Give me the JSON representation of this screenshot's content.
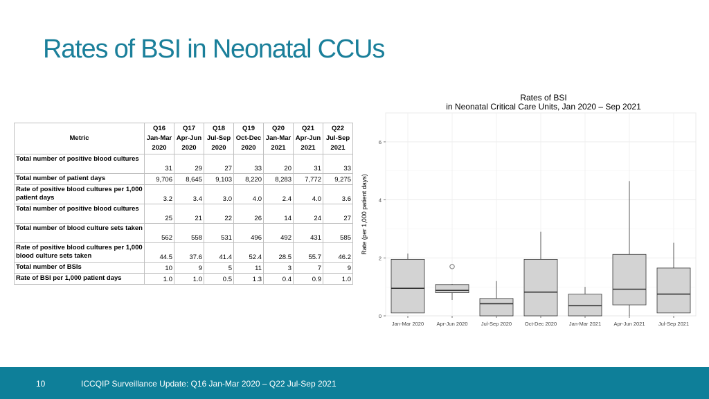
{
  "slide_title": "Rates of BSI in Neonatal CCUs",
  "table": {
    "metric_header": "Metric",
    "quarters": [
      {
        "q": "Q16",
        "period": "Jan-Mar",
        "year": "2020"
      },
      {
        "q": "Q17",
        "period": "Apr-Jun",
        "year": "2020"
      },
      {
        "q": "Q18",
        "period": "Jul-Sep",
        "year": "2020"
      },
      {
        "q": "Q19",
        "period": "Oct-Dec",
        "year": "2020"
      },
      {
        "q": "Q20",
        "period": "Jan-Mar",
        "year": "2021"
      },
      {
        "q": "Q21",
        "period": "Apr-Jun",
        "year": "2021"
      },
      {
        "q": "Q22",
        "period": "Jul-Sep",
        "year": "2021"
      }
    ],
    "rows": [
      {
        "metric": "Total number of positive blood cultures",
        "values": [
          "31",
          "29",
          "27",
          "33",
          "20",
          "31",
          "33"
        ]
      },
      {
        "metric": "Total number of patient days",
        "values": [
          "9,706",
          "8,645",
          "9,103",
          "8,220",
          "8,283",
          "7,772",
          "9,275"
        ]
      },
      {
        "metric": "Rate of positive blood cultures per 1,000 patient days",
        "values": [
          "3.2",
          "3.4",
          "3.0",
          "4.0",
          "2.4",
          "4.0",
          "3.6"
        ]
      },
      {
        "metric": "Total number of positive blood cultures",
        "values": [
          "25",
          "21",
          "22",
          "26",
          "14",
          "24",
          "27"
        ]
      },
      {
        "metric": "Total number of blood culture sets taken",
        "values": [
          "562",
          "558",
          "531",
          "496",
          "492",
          "431",
          "585"
        ]
      },
      {
        "metric": "Rate of positive blood cultures per 1,000 blood culture sets taken",
        "values": [
          "44.5",
          "37.6",
          "41.4",
          "52.4",
          "28.5",
          "55.7",
          "46.2"
        ]
      },
      {
        "metric": "Total number of BSIs",
        "values": [
          "10",
          "9",
          "5",
          "11",
          "3",
          "7",
          "9"
        ]
      },
      {
        "metric": "Rate of BSI per 1,000 patient days",
        "values": [
          "1.0",
          "1.0",
          "0.5",
          "1.3",
          "0.4",
          "0.9",
          "1.0"
        ]
      }
    ]
  },
  "chart_data": {
    "type": "boxplot",
    "title": "Rates of BSI",
    "subtitle": "in Neonatal Critical Care Units, Jan 2020 – Sep 2021",
    "xlabel": "",
    "ylabel": "Rate (per 1,000 patient days)",
    "ylim": [
      0,
      7
    ],
    "yticks": [
      0,
      2,
      4,
      6
    ],
    "grid": true,
    "categories": [
      "Jan-Mar 2020",
      "Apr-Jun 2020",
      "Jul-Sep 2020",
      "Oct-Dec 2020",
      "Jan-Mar 2021",
      "Apr-Jun 2021",
      "Jul-Sep 2021"
    ],
    "boxes": [
      {
        "min": 0.1,
        "q1": 0.1,
        "median": 0.95,
        "q3": 1.95,
        "max": 2.15,
        "outliers": []
      },
      {
        "min": 0.55,
        "q1": 0.8,
        "median": 0.88,
        "q3": 1.08,
        "max": 1.1,
        "outliers": [
          1.7
        ]
      },
      {
        "min": 0.0,
        "q1": 0.0,
        "median": 0.42,
        "q3": 0.6,
        "max": 1.2,
        "outliers": []
      },
      {
        "min": 0.0,
        "q1": 0.0,
        "median": 0.82,
        "q3": 1.95,
        "max": 2.9,
        "outliers": []
      },
      {
        "min": 0.0,
        "q1": 0.0,
        "median": 0.35,
        "q3": 0.75,
        "max": 1.0,
        "outliers": []
      },
      {
        "min": 0.0,
        "q1": 0.38,
        "median": 0.92,
        "q3": 2.12,
        "max": 4.65,
        "outliers": []
      },
      {
        "min": 0.1,
        "q1": 0.1,
        "median": 0.75,
        "q3": 1.65,
        "max": 2.52,
        "outliers": []
      }
    ],
    "box_fill": "#d3d3d3",
    "box_stroke": "#333333"
  },
  "footer": {
    "page_number": "10",
    "text": "ICCQIP Surveillance Update: Q16 Jan-Mar 2020 – Q22 Jul-Sep 2021"
  },
  "colors": {
    "title": "#1a7f9a",
    "footer_bg": "#0e7f99"
  }
}
